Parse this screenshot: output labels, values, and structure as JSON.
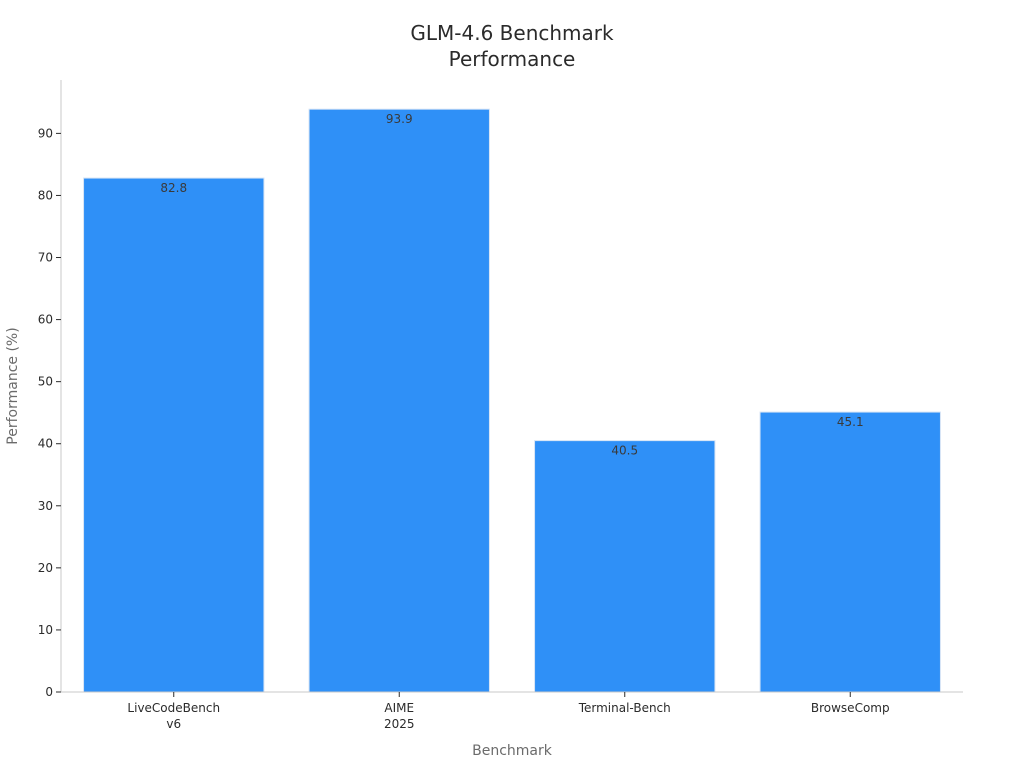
{
  "chart_data": {
    "type": "bar",
    "title": [
      "GLM-4.6 Benchmark",
      "Performance"
    ],
    "xlabel": "Benchmark",
    "ylabel": "Performance (%)",
    "categories": [
      [
        "LiveCodeBench",
        "v6"
      ],
      [
        "AIME",
        "2025"
      ],
      [
        "Terminal-Bench"
      ],
      [
        "BrowseComp"
      ]
    ],
    "values": [
      82.8,
      93.9,
      40.5,
      45.1
    ],
    "value_labels": [
      "82.8",
      "93.9",
      "40.5",
      "45.1"
    ],
    "ylim": [
      0,
      98.6
    ],
    "yticks": [
      0,
      10,
      20,
      30,
      40,
      50,
      60,
      70,
      80,
      90
    ],
    "grid": false,
    "colors": {
      "bar": "#2f90f7",
      "bar_edge": "#d6e4f5",
      "axis": "#c8c8c8"
    }
  }
}
